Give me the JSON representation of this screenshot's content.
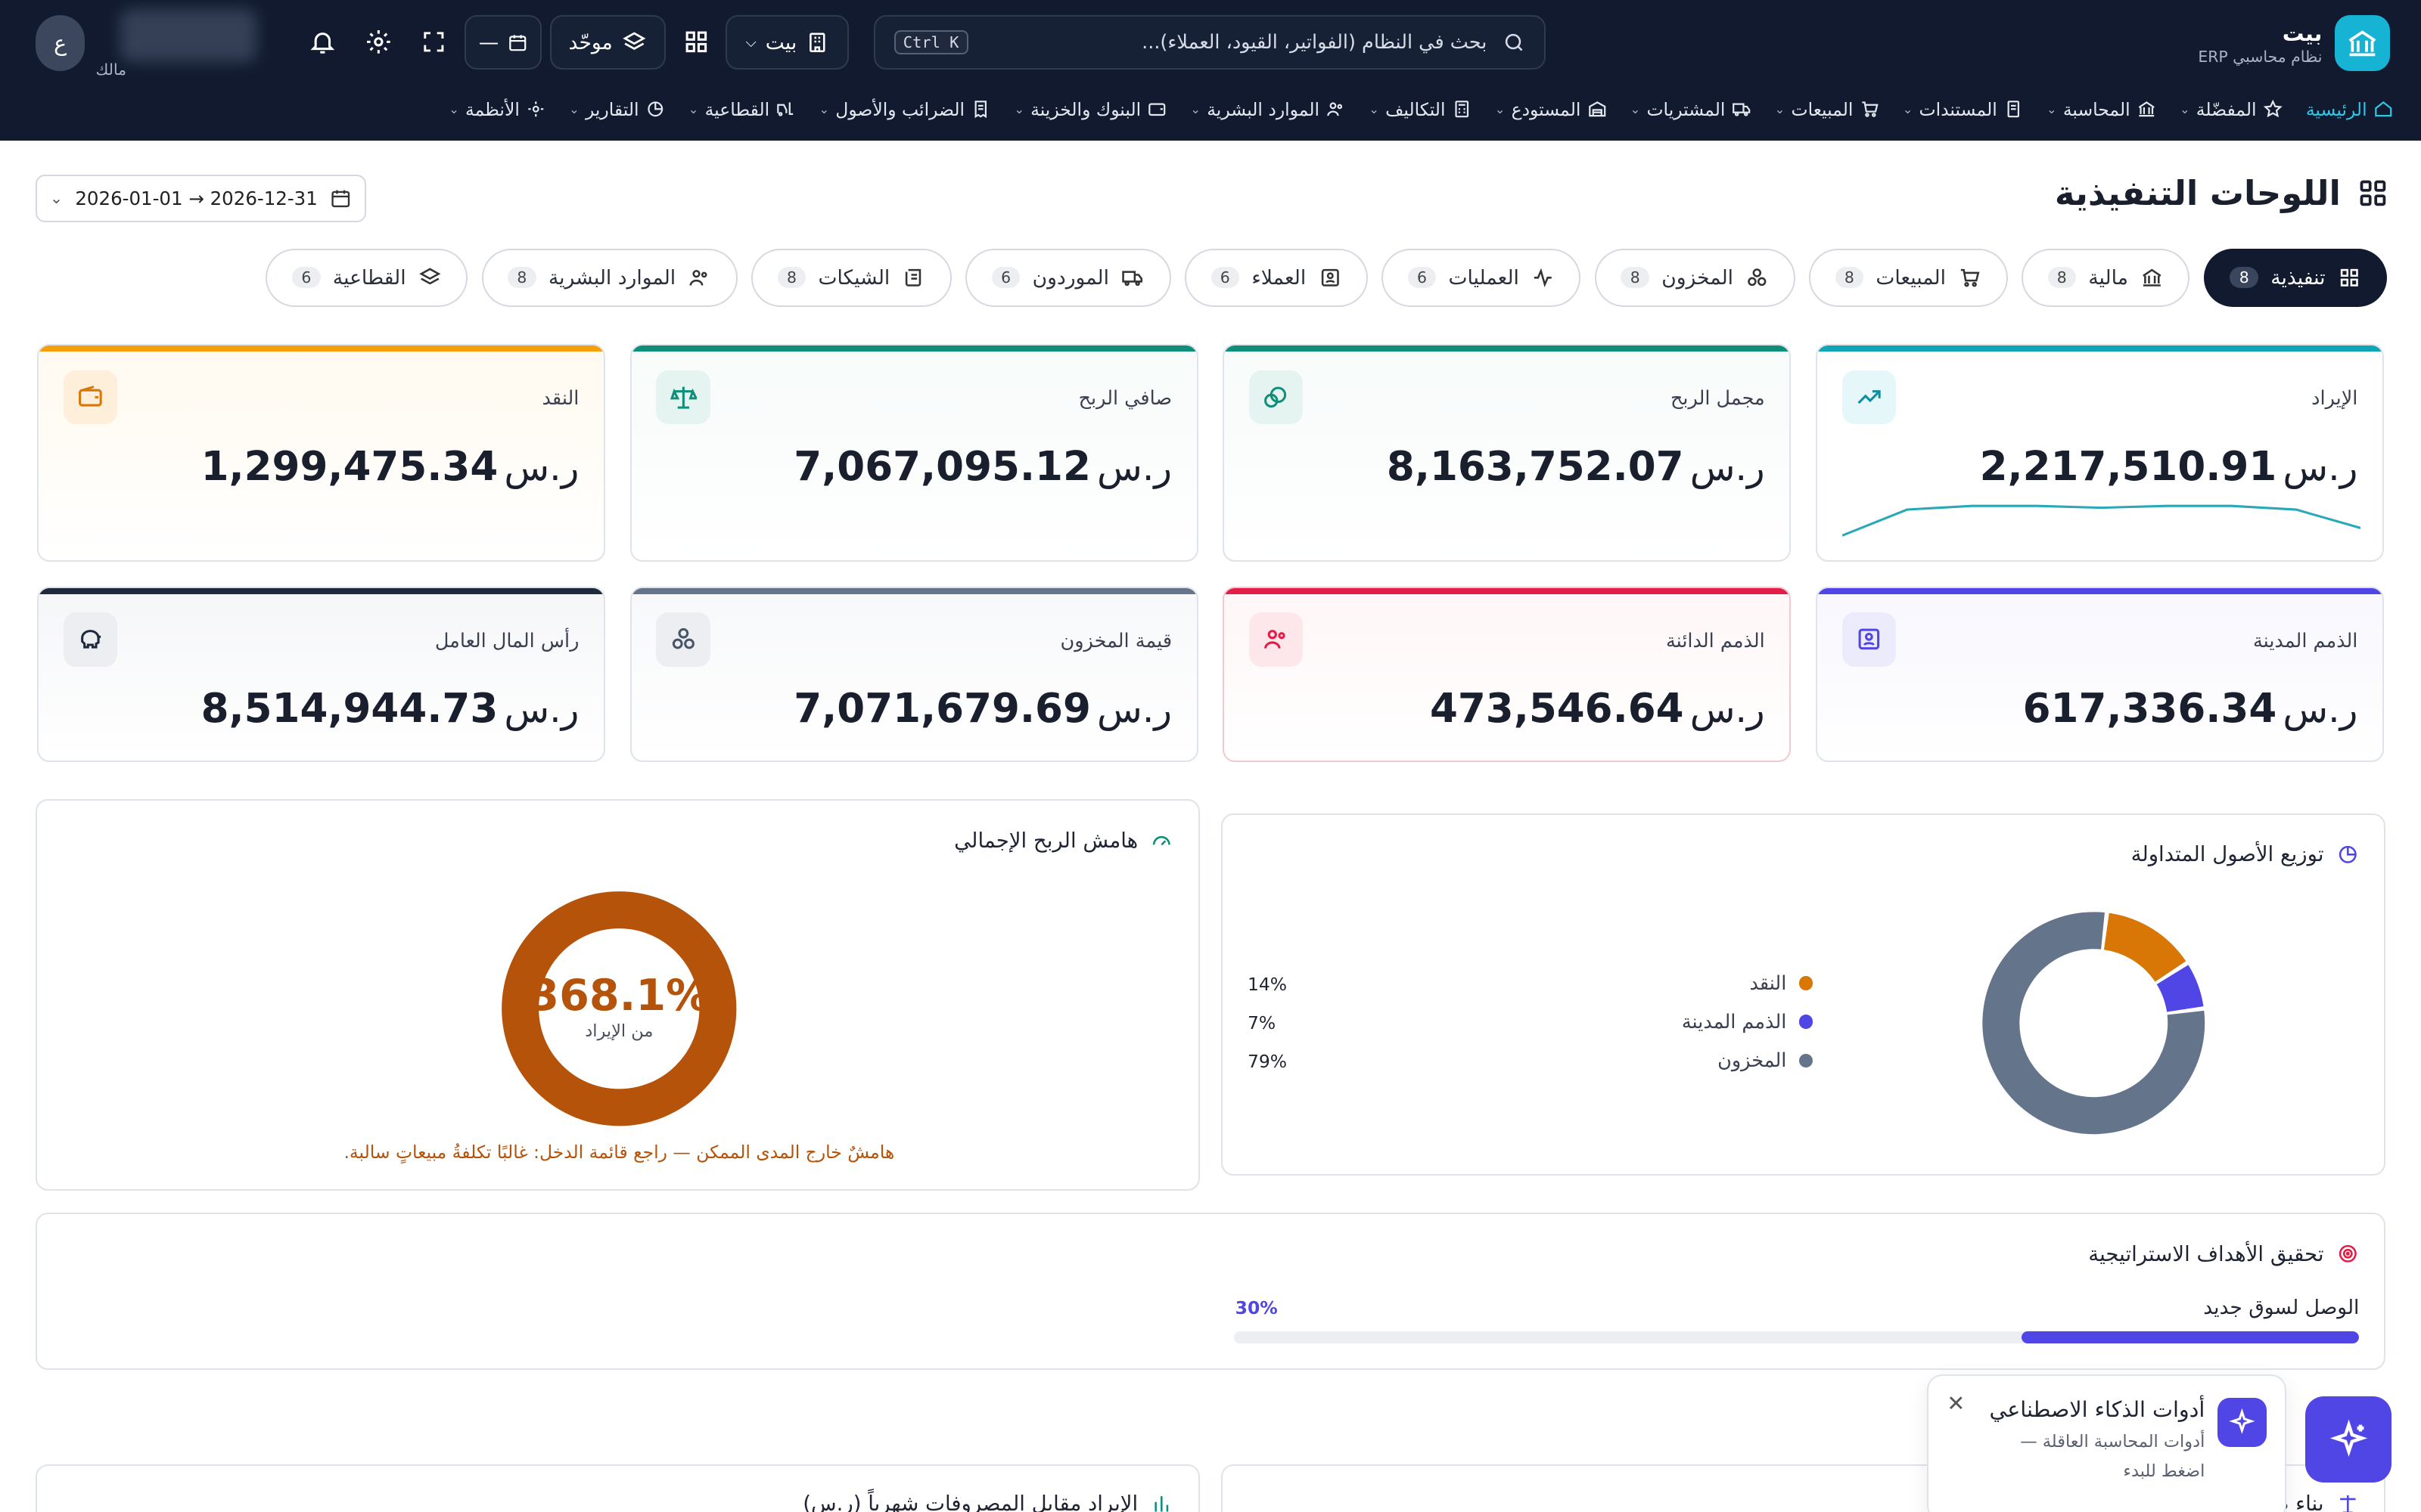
{
  "app": {
    "name": "بيت",
    "subtitle": "نظام محاسبي ERP"
  },
  "search": {
    "placeholder": "بحث في النظام (الفواتير، القيود، العملاء)...",
    "shortcut": "Ctrl K"
  },
  "topbar": {
    "company_label": "بيت",
    "view_label": "موحّد",
    "date_label": "—",
    "user_initial": "ع",
    "user_role": "مالك"
  },
  "nav": {
    "items": [
      {
        "label": "الرئيسية",
        "icon": "home-icon",
        "active": true
      },
      {
        "label": "المفضّلة",
        "icon": "star-icon"
      },
      {
        "label": "المحاسبة",
        "icon": "bank-icon"
      },
      {
        "label": "المستندات",
        "icon": "document-icon"
      },
      {
        "label": "المبيعات",
        "icon": "cart-icon"
      },
      {
        "label": "المشتريات",
        "icon": "truck-icon"
      },
      {
        "label": "المستودع",
        "icon": "warehouse-icon"
      },
      {
        "label": "التكاليف",
        "icon": "calculator-icon"
      },
      {
        "label": "الموارد البشرية",
        "icon": "users-icon"
      },
      {
        "label": "البنوك والخزينة",
        "icon": "wallet-icon"
      },
      {
        "label": "الضرائب والأصول",
        "icon": "receipt-icon"
      },
      {
        "label": "القطاعية",
        "icon": "forklift-icon"
      },
      {
        "label": "التقارير",
        "icon": "pie-icon"
      },
      {
        "label": "الأنظمة",
        "icon": "gear-icon"
      }
    ]
  },
  "page": {
    "title": "اللوحات التنفيذية",
    "date_range": "2026-01-01 → 2026-12-31"
  },
  "tabs": [
    {
      "label": "تنفيذية",
      "count": "8",
      "active": true
    },
    {
      "label": "مالية",
      "count": "8"
    },
    {
      "label": "المبيعات",
      "count": "8"
    },
    {
      "label": "المخزون",
      "count": "8"
    },
    {
      "label": "العمليات",
      "count": "6"
    },
    {
      "label": "العملاء",
      "count": "6"
    },
    {
      "label": "الموردون",
      "count": "6"
    },
    {
      "label": "الشيكات",
      "count": "8"
    },
    {
      "label": "الموارد البشرية",
      "count": "8"
    },
    {
      "label": "القطاعية",
      "count": "6"
    }
  ],
  "currency": "ر.س",
  "kpis": [
    {
      "label": "الإيراد",
      "value": "2,217,510.91",
      "color": "#0ea5b7",
      "icon": "trend-up-icon"
    },
    {
      "label": "مجمل الربح",
      "value": "8,163,752.07",
      "color": "#0f8f7a",
      "icon": "coins-icon"
    },
    {
      "label": "صافي الربح",
      "value": "7,067,095.12",
      "color": "#0f8f7a",
      "icon": "scale-icon"
    },
    {
      "label": "النقد",
      "value": "1,299,475.34",
      "color": "#f59e0b",
      "icon": "wallet-icon"
    },
    {
      "label": "الذمم المدينة",
      "value": "617,336.34",
      "color": "#4f46e5",
      "icon": "contact-icon"
    },
    {
      "label": "الذمم الدائنة",
      "value": "473,546.64",
      "color": "#e11d48",
      "icon": "users-icon"
    },
    {
      "label": "قيمة المخزون",
      "value": "7,071,679.69",
      "color": "#64748b",
      "icon": "boxes-icon"
    },
    {
      "label": "رأس المال العامل",
      "value": "8,514,944.73",
      "color": "#1e293b",
      "icon": "piggy-icon"
    }
  ],
  "revenue_sparkline": [
    4,
    9,
    10,
    10,
    9.5,
    10,
    10,
    9,
    2
  ],
  "assets_panel": {
    "title": "توزيع الأصول المتداولة",
    "chart_data": {
      "type": "pie",
      "title": "توزيع الأصول المتداولة",
      "slices": [
        {
          "name": "النقد",
          "value": 14,
          "label": "14%",
          "color": "#d97706"
        },
        {
          "name": "الذمم المدينة",
          "value": 7,
          "label": "7%",
          "color": "#4f46e5"
        },
        {
          "name": "المخزون",
          "value": 79,
          "label": "79%",
          "color": "#64748b"
        }
      ]
    }
  },
  "margin_panel": {
    "title": "هامش الربح الإجمالي",
    "value": "368.1%",
    "caption": "من الإيراد",
    "warning": "هامشٌ خارج المدى الممكن — راجع قائمة الدخل: غالبًا تكلفةُ مبيعاتٍ سالبة.",
    "color": "#b45309"
  },
  "goals_panel": {
    "title": "تحقيق الأهداف الاستراتيجية",
    "goals": [
      {
        "label": "الوصل لسوق جديد",
        "progress": 30,
        "progress_label": "30%"
      }
    ]
  },
  "bottom_panels": {
    "left_title": "الإيراد مقابل المصروفات شهرياً (ر.س)",
    "right_title": "بناء ضمن الأبراج ..."
  },
  "ai": {
    "title": "أدوات الذكاء الاصطناعي",
    "line1": "أدوات المحاسبة العاقلة —",
    "line2": "اضغط للبدء"
  }
}
